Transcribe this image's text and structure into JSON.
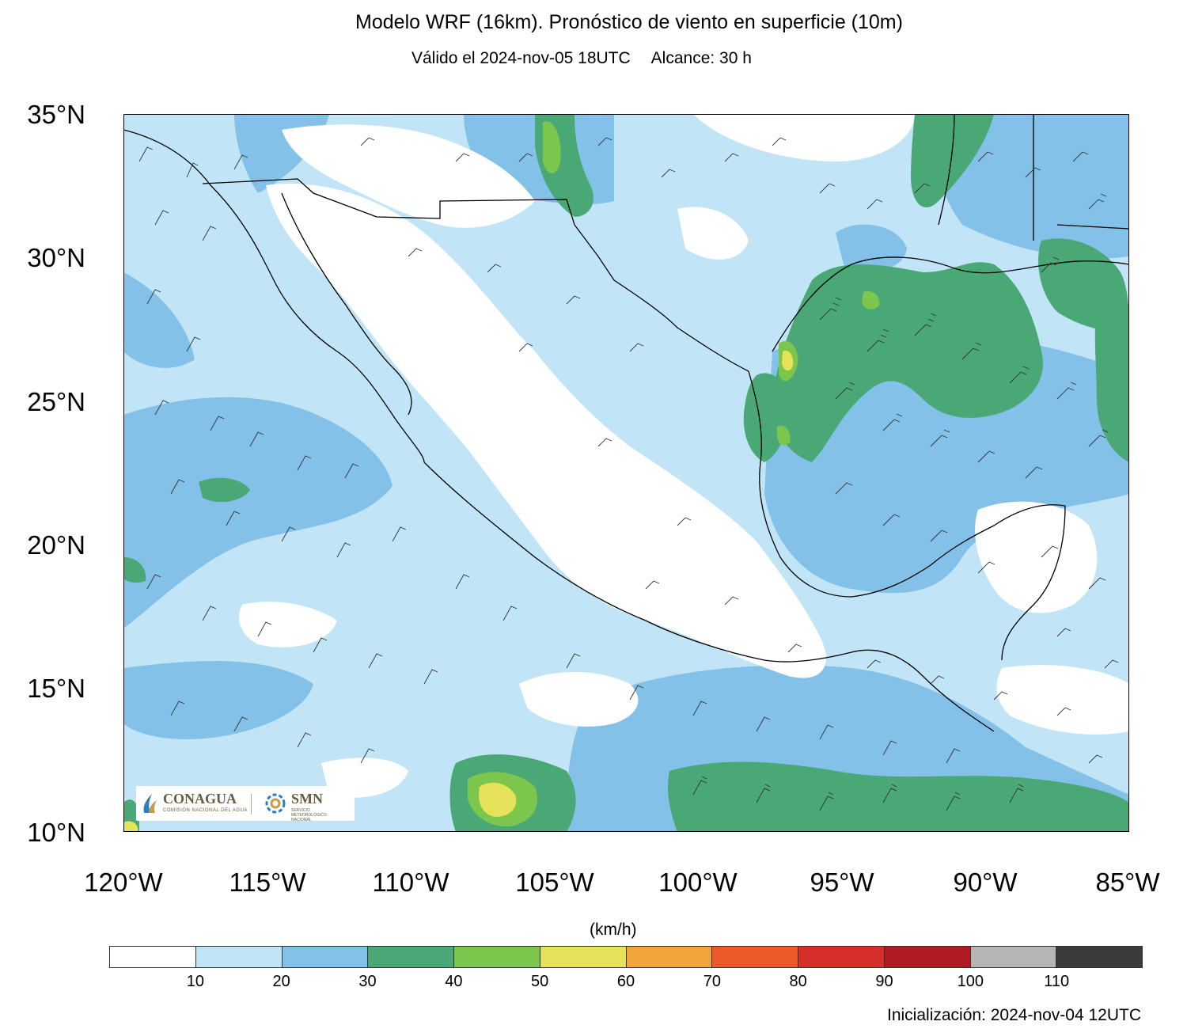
{
  "title": "Modelo WRF (16km). Pronóstico de viento en superficie (10m)",
  "valid": "Válido el 2024-nov-05 18UTC",
  "range": "Alcance: 30 h",
  "units": "(km/h)",
  "init": "Inicialización: 2024-nov-04 12UTC",
  "lat_labels": [
    "35°N",
    "30°N",
    "25°N",
    "20°N",
    "15°N",
    "10°N"
  ],
  "lon_labels": [
    "120°W",
    "115°W",
    "110°W",
    "105°W",
    "100°W",
    "95°W",
    "90°W",
    "85°W"
  ],
  "extent": {
    "lon": [
      -120,
      -85
    ],
    "lat": [
      10,
      35
    ]
  },
  "colorbar": {
    "colors": [
      "#ffffff",
      "#c1e5f7",
      "#84c1e8",
      "#4aa877",
      "#7cc64d",
      "#e6e25a",
      "#f1a43c",
      "#ec5a2b",
      "#d62f2a",
      "#b01a21",
      "#b5b5b5",
      "#3a3a3a"
    ],
    "labels": [
      "10",
      "20",
      "30",
      "40",
      "50",
      "60",
      "70",
      "80",
      "90",
      "100",
      "110"
    ]
  },
  "logos": {
    "conagua": "CONAGUA",
    "conagua_sub": "COMISIÓN NACIONAL DEL AGUA",
    "smn": "SMN",
    "smn_sub": "SERVICIO METEOROLÓGICO NACIONAL"
  }
}
